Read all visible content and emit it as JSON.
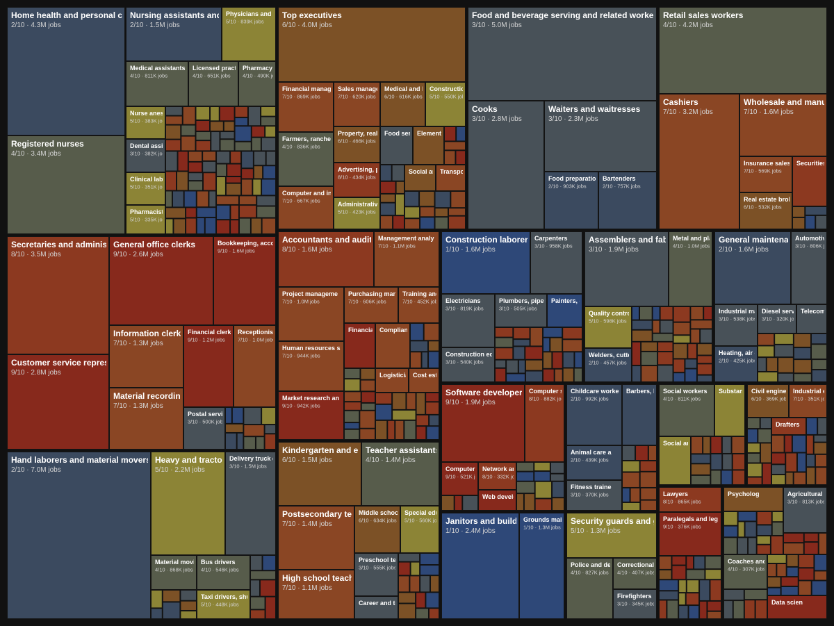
{
  "chart_data": {
    "type": "treemap",
    "items": [
      {
        "name": "Home health and personal care",
        "label": "2/10 · 4.3M jobs"
      },
      {
        "name": "Registered nurses",
        "label": "4/10 · 3.4M jobs"
      },
      {
        "name": "Nursing assistants and o",
        "label": "2/10 · 1.5M jobs"
      },
      {
        "name": "Physicians and su",
        "label": "5/10 · 839K jobs"
      },
      {
        "name": "Medical assistants",
        "label": "4/10 · 811K jobs"
      },
      {
        "name": "Licensed practic",
        "label": "4/10 · 651K jobs"
      },
      {
        "name": "Pharmacy te",
        "label": "4/10 · 490K jobs"
      },
      {
        "name": "Nurse anesti",
        "label": "5/10 · 383K jobs"
      },
      {
        "name": "Dental assis",
        "label": "3/10 · 382K jobs"
      },
      {
        "name": "Clinical labo",
        "label": "5/10 · 351K jobs"
      },
      {
        "name": "Pharmacists",
        "label": "5/10 · 335K jobs"
      },
      {
        "name": "Top executives",
        "label": "6/10 · 4.0M jobs"
      },
      {
        "name": "Financial manager",
        "label": "7/10 · 869K jobs"
      },
      {
        "name": "Sales manager",
        "label": "7/10 · 620K jobs"
      },
      {
        "name": "Medical and he",
        "label": "6/10 · 616K jobs"
      },
      {
        "name": "Construction",
        "label": "5/10 · 550K jobs"
      },
      {
        "name": "Farmers, ranchers",
        "label": "4/10 · 836K jobs"
      },
      {
        "name": "Computer and info",
        "label": "7/10 · 667K jobs"
      },
      {
        "name": "Property, real e",
        "label": "6/10 · 466K jobs"
      },
      {
        "name": "Advertising, pr",
        "label": "8/10 · 434K jobs"
      },
      {
        "name": "Administrative",
        "label": "5/10 · 423K jobs"
      },
      {
        "name": "Food serv"
      },
      {
        "name": "Elementa"
      },
      {
        "name": "Social an"
      },
      {
        "name": "Transport"
      },
      {
        "name": "Food and beverage serving and related workers",
        "label": "3/10 · 5.0M jobs"
      },
      {
        "name": "Cooks",
        "label": "3/10 · 2.8M jobs"
      },
      {
        "name": "Waiters and waitresses",
        "label": "3/10 · 2.3M jobs"
      },
      {
        "name": "Food preparation w",
        "label": "2/10 · 903K jobs"
      },
      {
        "name": "Bartenders",
        "label": "2/10 · 757K jobs"
      },
      {
        "name": "Retail sales workers",
        "label": "4/10 · 4.2M jobs"
      },
      {
        "name": "Cashiers",
        "label": "7/10 · 3.2M jobs"
      },
      {
        "name": "Wholesale and manufa",
        "label": "7/10 · 1.6M jobs"
      },
      {
        "name": "Insurance sales a",
        "label": "7/10 · 569K jobs"
      },
      {
        "name": "Securities,"
      },
      {
        "name": "Real estate broke",
        "label": "6/10 · 532K jobs"
      },
      {
        "name": "Secretaries and administra",
        "label": "8/10 · 3.5M jobs"
      },
      {
        "name": "Customer service represe",
        "label": "9/10 · 2.8M jobs"
      },
      {
        "name": "General office clerks",
        "label": "9/10 · 2.6M jobs"
      },
      {
        "name": "Bookkeeping, acco",
        "label": "9/10 · 1.6M jobs"
      },
      {
        "name": "Information clerks",
        "label": "7/10 · 1.3M jobs"
      },
      {
        "name": "Material recording c",
        "label": "7/10 · 1.3M jobs"
      },
      {
        "name": "Financial clerks",
        "label": "9/10 · 1.2M jobs"
      },
      {
        "name": "Receptionists",
        "label": "7/10 · 1.0M jobs"
      },
      {
        "name": "Postal service",
        "label": "3/10 · 500K jobs"
      },
      {
        "name": "Hand laborers and material movers",
        "label": "2/10 · 7.0M jobs"
      },
      {
        "name": "Heavy and tractor-t",
        "label": "5/10 · 2.2M jobs"
      },
      {
        "name": "Delivery truck dr",
        "label": "3/10 · 1.5M jobs"
      },
      {
        "name": "Material moving",
        "label": "4/10 · 868K jobs"
      },
      {
        "name": "Bus drivers",
        "label": "4/10 · 546K jobs"
      },
      {
        "name": "Taxi drivers, shutt",
        "label": "5/10 · 448K jobs"
      },
      {
        "name": "Accountants and auditor",
        "label": "8/10 · 1.6M jobs"
      },
      {
        "name": "Management analy",
        "label": "7/10 · 1.1M jobs"
      },
      {
        "name": "Project manageme",
        "label": "7/10 · 1.0M jobs"
      },
      {
        "name": "Human resources s",
        "label": "7/10 · 944K jobs"
      },
      {
        "name": "Market research an",
        "label": "9/10 · 942K jobs"
      },
      {
        "name": "Purchasing manag",
        "label": "7/10 · 606K jobs"
      },
      {
        "name": "Training and",
        "label": "7/10 · 452K jobs"
      },
      {
        "name": "Financial a"
      },
      {
        "name": "Complian"
      },
      {
        "name": "Logisticians"
      },
      {
        "name": "Cost esti"
      },
      {
        "name": "Kindergarten and ele",
        "label": "6/10 · 1.5M jobs"
      },
      {
        "name": "Teacher assistants",
        "label": "4/10 · 1.4M jobs"
      },
      {
        "name": "Postsecondary teac",
        "label": "7/10 · 1.4M jobs"
      },
      {
        "name": "High school teacher",
        "label": "7/10 · 1.1M jobs"
      },
      {
        "name": "Middle school",
        "label": "6/10 · 634K jobs"
      },
      {
        "name": "Special educ",
        "label": "5/10 · 560K jobs"
      },
      {
        "name": "Preschool tea",
        "label": "3/10 · 555K jobs"
      },
      {
        "name": "Career and te"
      },
      {
        "name": "Construction laborers",
        "label": "1/10 · 1.6M jobs"
      },
      {
        "name": "Carpenters",
        "label": "3/10 · 958K jobs"
      },
      {
        "name": "Electricians",
        "label": "3/10 · 819K jobs"
      },
      {
        "name": "Plumbers, pipefit",
        "label": "3/10 · 505K jobs"
      },
      {
        "name": "Painters, c"
      },
      {
        "name": "Construction equ",
        "label": "3/10 · 540K jobs"
      },
      {
        "name": "Assemblers and fabri",
        "label": "3/10 · 1.9M jobs"
      },
      {
        "name": "Metal and plas",
        "label": "4/10 · 1.0M jobs"
      },
      {
        "name": "Quality control i",
        "label": "5/10 · 598K jobs"
      },
      {
        "name": "Welders, cutters",
        "label": "2/10 · 457K jobs"
      },
      {
        "name": "General maintenanc",
        "label": "2/10 · 1.6M jobs"
      },
      {
        "name": "Automotive",
        "label": "3/10 · 806K jobs"
      },
      {
        "name": "Industrial ma",
        "label": "3/10 · 538K jobs"
      },
      {
        "name": "Diesel servi",
        "label": "3/10 · 320K jobs"
      },
      {
        "name": "Telecomm"
      },
      {
        "name": "Heating, air c",
        "label": "2/10 · 425K jobs"
      },
      {
        "name": "Software developers,",
        "label": "9/10 · 1.9M jobs"
      },
      {
        "name": "Computer su",
        "label": "8/10 · 882K jobs"
      },
      {
        "name": "Computer s",
        "label": "9/10 · 521K jobs"
      },
      {
        "name": "Network and",
        "label": "8/10 · 332K jobs"
      },
      {
        "name": "Web develop"
      },
      {
        "name": "Childcare workers",
        "label": "2/10 · 992K jobs"
      },
      {
        "name": "Barbers, ha"
      },
      {
        "name": "Animal care a",
        "label": "2/10 · 439K jobs"
      },
      {
        "name": "Fitness traine",
        "label": "3/10 · 370K jobs"
      },
      {
        "name": "Janitors and buildin",
        "label": "1/10 · 2.4M jobs"
      },
      {
        "name": "Grounds maint",
        "label": "1/10 · 1.3M jobs"
      },
      {
        "name": "Security guards and ga",
        "label": "5/10 · 1.3M jobs"
      },
      {
        "name": "Police and dete",
        "label": "4/10 · 827K jobs"
      },
      {
        "name": "Correctional of",
        "label": "4/10 · 407K jobs"
      },
      {
        "name": "Firefighters",
        "label": "3/10 · 345K jobs"
      },
      {
        "name": "Social workers",
        "label": "4/10 · 811K jobs"
      },
      {
        "name": "Substanc"
      },
      {
        "name": "Social an"
      },
      {
        "name": "Civil engineer",
        "label": "6/10 · 369K jobs"
      },
      {
        "name": "Industrial en",
        "label": "7/10 · 351K jobs"
      },
      {
        "name": "Drafters"
      },
      {
        "name": "Lawyers",
        "label": "8/10 · 865K jobs"
      },
      {
        "name": "Paralegals and leg",
        "label": "9/10 · 376K jobs"
      },
      {
        "name": "Psycholog"
      },
      {
        "name": "Agricultural wo",
        "label": "3/10 · 813K jobs"
      },
      {
        "name": "Coaches and",
        "label": "4/10 · 307K jobs"
      },
      {
        "name": "Data scien"
      }
    ]
  }
}
